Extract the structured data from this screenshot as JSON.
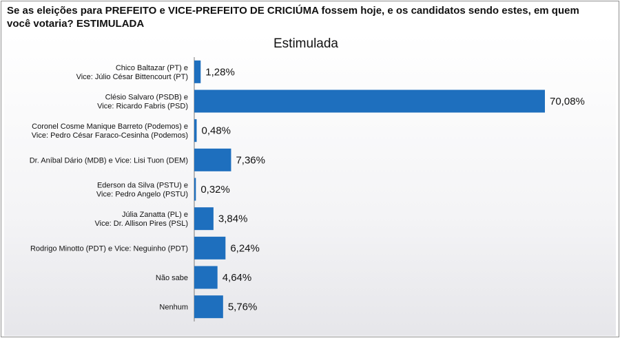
{
  "header": {
    "question": "Se as eleições para PREFEITO e VICE-PREFEITO DE CRICIÚMA fossem hoje, e os candidatos sendo estes, em quem você votaria? ESTIMULADA"
  },
  "colors": {
    "bar": "#1e6fbe",
    "axis": "#7a7a7a"
  },
  "chart_data": {
    "type": "bar",
    "orientation": "horizontal",
    "title": "Estimulada",
    "categories": [
      [
        "Chico Baltazar (PT) e",
        "Vice: Júlio César Bittencourt (PT)"
      ],
      [
        "Clésio Salvaro (PSDB) e",
        "Vice: Ricardo Fabris (PSD)"
      ],
      [
        "Coronel Cosme Manique Barreto (Podemos) e",
        "Vice: Pedro César Faraco-Cesinha (Podemos)"
      ],
      [
        "Dr. Aníbal Dário (MDB) e Vice: Lisi Tuon (DEM)"
      ],
      [
        "Ederson da Silva (PSTU) e",
        "Vice: Pedro Angelo (PSTU)"
      ],
      [
        "Júlia Zanatta (PL) e",
        "Vice: Dr. Allison Pires (PSL)"
      ],
      [
        "Rodrigo Minotto (PDT) e Vice: Neguinho (PDT)"
      ],
      [
        "Não sabe"
      ],
      [
        "Nenhum"
      ]
    ],
    "values": [
      1.28,
      70.08,
      0.48,
      7.36,
      0.32,
      3.84,
      6.24,
      4.64,
      5.76
    ],
    "value_labels": [
      "1,28%",
      "70,08%",
      "0,48%",
      "7,36%",
      "0,32%",
      "3,84%",
      "6,24%",
      "4,64%",
      "5,76%"
    ],
    "xlim": [
      0,
      70.08
    ],
    "grid": false,
    "legend": "none"
  }
}
